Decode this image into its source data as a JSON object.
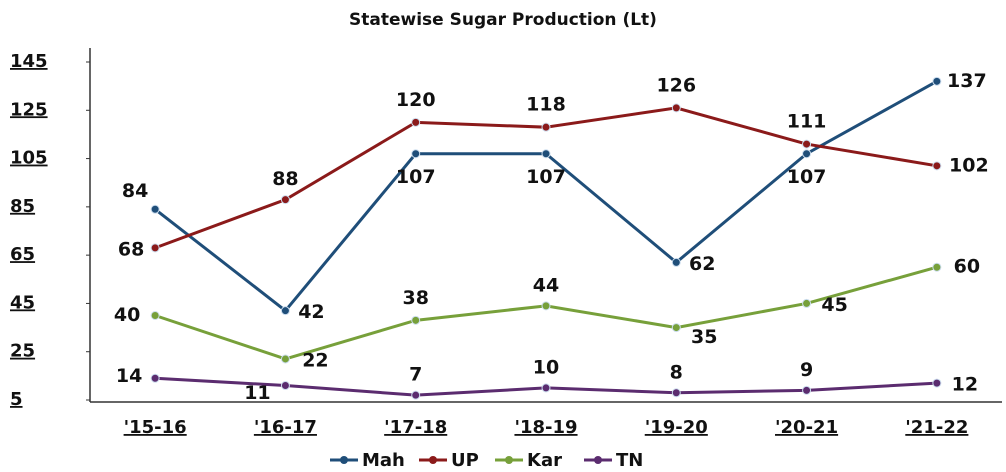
{
  "chart_data": {
    "type": "line",
    "title": "Statewise Sugar Production (Lt)",
    "categories": [
      "'15-16",
      "'16-17",
      "'17-18",
      "'18-19",
      "'19-20",
      "'20-21",
      "'21-22"
    ],
    "series": [
      {
        "name": "Mah",
        "color": "#1f4e79",
        "values": [
          84,
          42,
          107,
          107,
          62,
          107,
          137
        ]
      },
      {
        "name": "UP",
        "color": "#8b1a1a",
        "values": [
          68,
          88,
          120,
          118,
          126,
          111,
          102
        ]
      },
      {
        "name": "Kar",
        "color": "#77a03a",
        "values": [
          40,
          22,
          38,
          44,
          35,
          45,
          60
        ]
      },
      {
        "name": "TN",
        "color": "#5b2c6f",
        "values": [
          14,
          11,
          7,
          10,
          8,
          9,
          12
        ]
      }
    ],
    "ylim": [
      5,
      145
    ],
    "yticks": [
      5,
      25,
      45,
      65,
      85,
      105,
      125,
      145
    ],
    "legend": "bottom"
  }
}
